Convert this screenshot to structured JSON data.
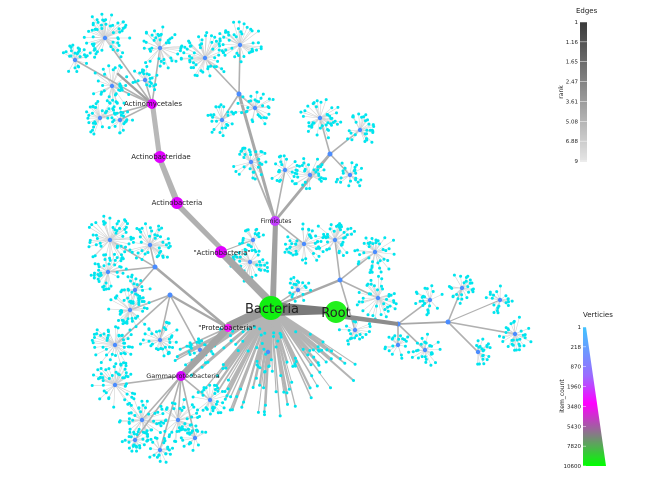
{
  "nodes": {
    "root": "Root",
    "bacteria": "Bacteria",
    "proteobacteria": "\"Proteobacteria\"",
    "gammaproteobacteria": "Gammaproteobacteria",
    "actinobacteria_phylum": "\"Actinobacteria\"",
    "actinobacteria_class": "Actinobacteria",
    "actinobacteridae": "Actinobacteridae",
    "actinomycetales": "Actinomycetales",
    "firmicutes": "Firmicutes"
  },
  "legend_edges": {
    "title": "Edges",
    "axis_label": "rank",
    "ticks": [
      "1",
      "1.16",
      "1.65",
      "2.47",
      "3.61",
      "5.08",
      "6.88",
      "9"
    ]
  },
  "legend_vertices": {
    "title": "Verticies",
    "axis_label": "item_count",
    "ticks": [
      "1",
      "218",
      "870",
      "1960",
      "3480",
      "5430",
      "7820",
      "10600"
    ]
  },
  "colors": {
    "leaf": "#00e5ee",
    "leaf_edge": "#d3d3d3",
    "low": "#4a8cff",
    "mid": "#ff00ff",
    "high": "#00ff00",
    "trunk": "#808080"
  }
}
